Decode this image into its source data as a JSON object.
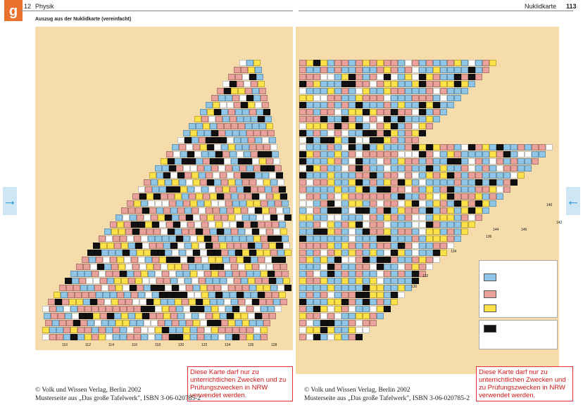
{
  "header": {
    "left_page_number": "12",
    "left_title": "Physik",
    "right_title": "Nuklidkarte",
    "right_page_number": "113"
  },
  "left_page": {
    "subtitle": "Auszug aus der Nuklidkarte (vereinfacht)",
    "bottom_axis": [
      "110",
      "112",
      "114",
      "116",
      "118",
      "120",
      "122",
      "124",
      "126",
      "128"
    ]
  },
  "right_page": {
    "axis_labels": [
      "140",
      "142",
      "144",
      "146",
      "136",
      "130",
      "132",
      "134"
    ]
  },
  "notice_text": "Diese Karte darf nur zu unterrichtlichen Zwecken und zu Prüfungszwecken in NRW verwendet werden.",
  "footer": {
    "copyright": "© Volk und Wissen Verlag, Berlin 2002",
    "source": "Musterseite aus „Das große Tafelwerk\", ISBN 3-06-020785-2"
  },
  "navigation": {
    "prev_icon": "arrow-right-icon",
    "next_icon": "arrow-left-icon"
  },
  "colors": {
    "stable": "#111111",
    "beta_minus": "#8fc6e8",
    "beta_plus": "#eaa19a",
    "alpha": "#ffe24a",
    "notice": "#d01818",
    "page_bg": "#f6dcaa"
  }
}
